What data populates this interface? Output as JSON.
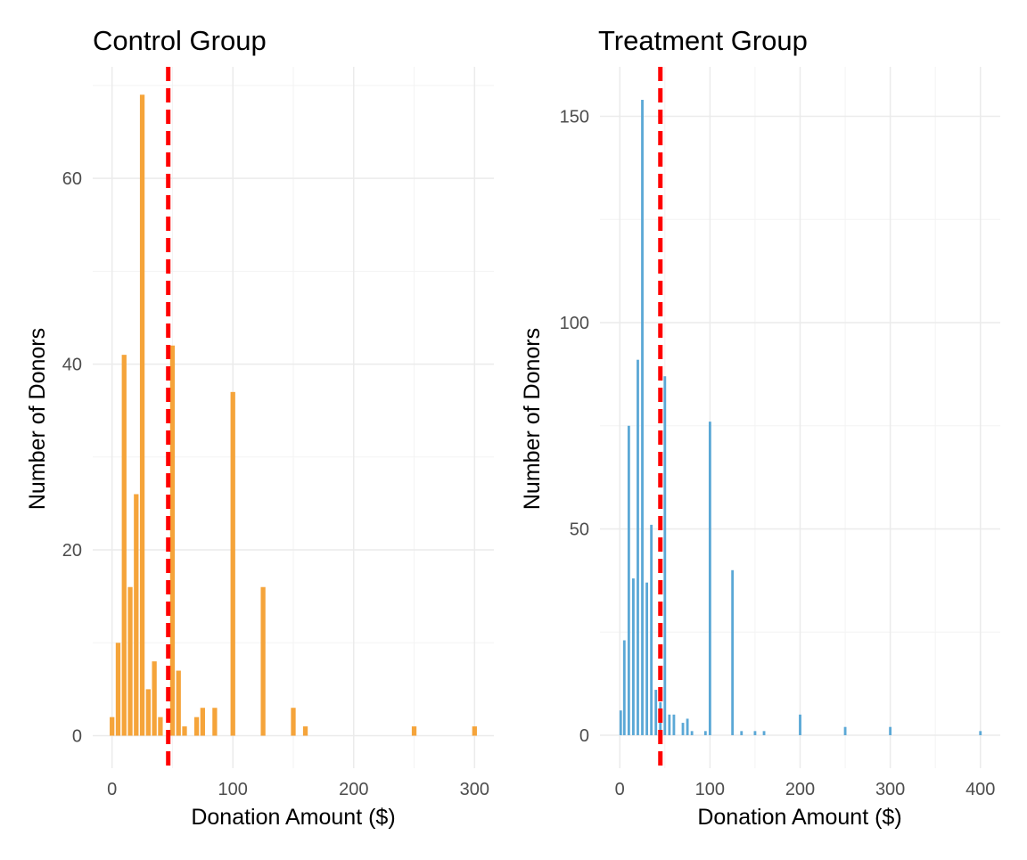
{
  "chart_data": [
    {
      "type": "bar",
      "title": "Control Group",
      "xlabel": "Donation Amount ($)",
      "ylabel": "Number of Donors",
      "xlim": [
        -16,
        316
      ],
      "ylim": [
        -3.5,
        72
      ],
      "xticks": [
        0,
        100,
        200,
        300
      ],
      "yticks": [
        0,
        20,
        40,
        60
      ],
      "grid": true,
      "bar_width": 3.9,
      "color": "#f5a43a",
      "reference_line": {
        "x": 46.5,
        "color": "#ff0000",
        "style": "dashed"
      },
      "x": [
        0,
        5,
        10,
        15,
        20,
        25,
        30,
        35,
        40,
        50,
        55,
        60,
        70,
        75,
        85,
        100,
        125,
        150,
        160,
        250,
        300
      ],
      "values": [
        2,
        10,
        41,
        16,
        26,
        69,
        5,
        8,
        2,
        42,
        7,
        1,
        2,
        3,
        3,
        37,
        16,
        3,
        1,
        1,
        1
      ]
    },
    {
      "type": "bar",
      "title": "Treatment Group",
      "xlabel": "Donation Amount ($)",
      "ylabel": "Number of Donors",
      "xlim": [
        -22,
        422
      ],
      "ylim": [
        -8,
        162
      ],
      "xticks": [
        0,
        100,
        200,
        300,
        400
      ],
      "yticks": [
        0,
        50,
        100,
        150
      ],
      "grid": true,
      "bar_width": 2.8,
      "color": "#5ba8d6",
      "reference_line": {
        "x": 45,
        "color": "#ff0000",
        "style": "dashed"
      },
      "x": [
        1,
        5,
        10,
        15,
        20,
        25,
        30,
        35,
        40,
        45,
        50,
        55,
        60,
        70,
        75,
        80,
        95,
        100,
        125,
        135,
        150,
        160,
        200,
        250,
        300,
        400
      ],
      "values": [
        6,
        23,
        75,
        38,
        91,
        154,
        37,
        51,
        11,
        8,
        87,
        5,
        5,
        3,
        4,
        1,
        1,
        76,
        40,
        1,
        1,
        1,
        5,
        2,
        2,
        1
      ]
    }
  ]
}
